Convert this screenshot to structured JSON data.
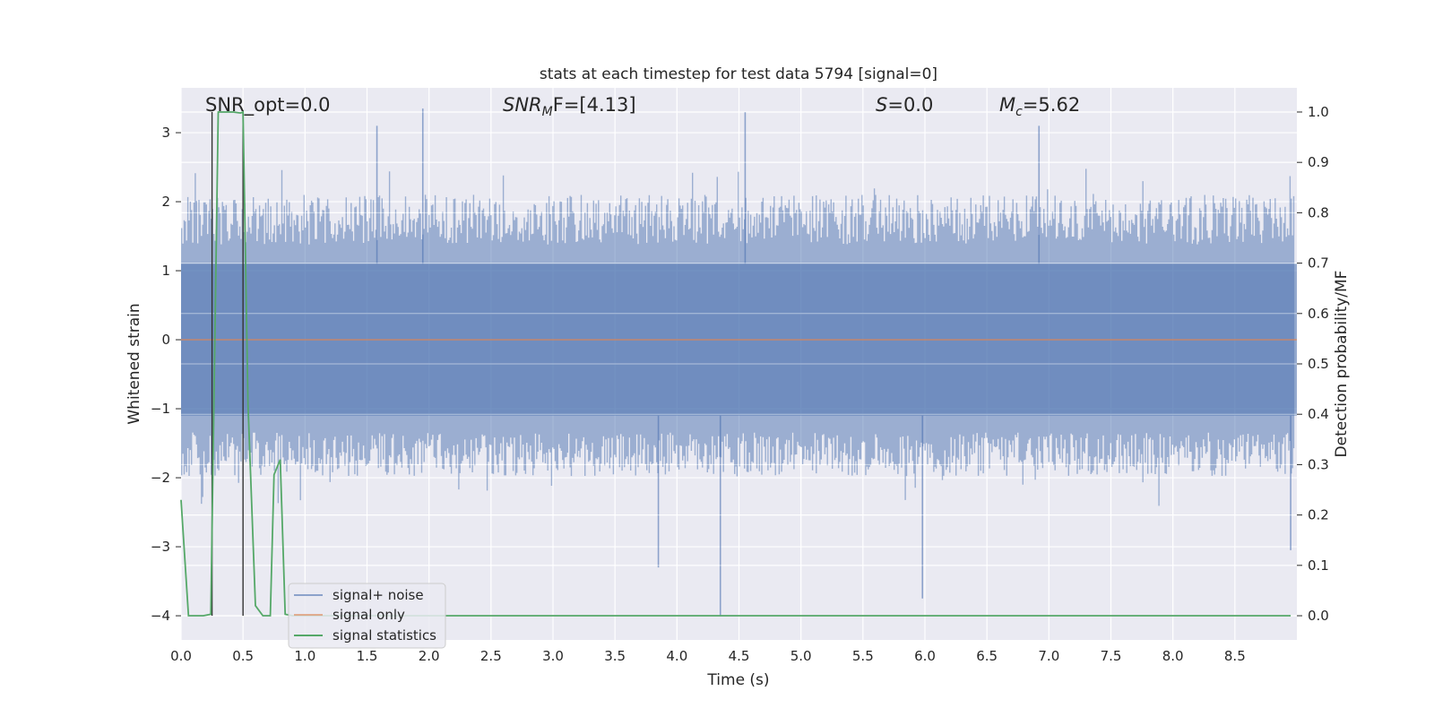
{
  "chart_data": {
    "type": "line",
    "title": "stats at each timestep for test data 5794 [signal=0]",
    "xlabel": "Time (s)",
    "ylabel": "Whitened strain",
    "ylabel_right": "Detection probability/MF",
    "xlim": [
      0.0,
      9.0
    ],
    "ylim": [
      -4.35,
      3.65
    ],
    "ylim_right": [
      -0.048,
      1.048
    ],
    "x_ticks": [
      "0.0",
      "0.5",
      "1.0",
      "1.5",
      "2.0",
      "2.5",
      "3.0",
      "3.5",
      "4.0",
      "4.5",
      "5.0",
      "5.5",
      "6.0",
      "6.5",
      "7.0",
      "7.5",
      "8.0",
      "8.5"
    ],
    "y_ticks": [
      "3",
      "2",
      "1",
      "0",
      "−1",
      "−2",
      "−3",
      "−4"
    ],
    "y_ticks_right": [
      "1.0",
      "0.9",
      "0.8",
      "0.7",
      "0.6",
      "0.5",
      "0.4",
      "0.3",
      "0.2",
      "0.1",
      "0.0"
    ],
    "annotations": {
      "snr_opt": "SNR_opt=0.0",
      "snr_mf_sym": "SNR",
      "snr_mf_sub": "M",
      "snr_mf_rest": "F=[4.13]",
      "s_sym": "S",
      "s_rest": "=0.0",
      "mc_sym": "M",
      "mc_sub": "c",
      "mc_rest": "=5.62"
    },
    "vertical_lines_x": [
      0.25,
      0.5
    ],
    "series": [
      {
        "name": "signal+ noise",
        "color": "#4c72b0",
        "style": "noise band",
        "band_typical_range": [
          -1.8,
          1.9
        ],
        "band_inner_range": [
          -1.1,
          1.1
        ],
        "peaks": [
          {
            "x": 1.95,
            "y": 3.35
          },
          {
            "x": 4.55,
            "y": 3.3
          },
          {
            "x": 1.58,
            "y": 3.1
          },
          {
            "x": 6.92,
            "y": 3.1
          }
        ],
        "troughs": [
          {
            "x": 4.35,
            "y": -4.0
          },
          {
            "x": 5.98,
            "y": -3.75
          },
          {
            "x": 3.85,
            "y": -3.3
          },
          {
            "x": 8.95,
            "y": -3.05
          }
        ]
      },
      {
        "name": "signal only",
        "color": "#dd8452",
        "x": [
          0.0,
          9.0
        ],
        "y": [
          0.0,
          0.0
        ]
      },
      {
        "name": "signal statistics",
        "color": "#55a868",
        "axis": "right",
        "x": [
          0.0,
          0.06,
          0.12,
          0.18,
          0.24,
          0.3,
          0.36,
          0.42,
          0.48,
          0.5,
          0.54,
          0.6,
          0.66,
          0.72,
          0.75,
          0.8,
          0.84,
          0.9,
          1.0,
          2.0,
          3.0,
          4.0,
          5.0,
          6.0,
          7.0,
          8.0,
          8.95
        ],
        "y": [
          0.23,
          0.0,
          0.0,
          0.0,
          0.003,
          1.0,
          1.0,
          1.0,
          0.998,
          1.0,
          0.42,
          0.02,
          0.0,
          0.0,
          0.28,
          0.31,
          0.003,
          0.0,
          0.0,
          0.0,
          0.0,
          0.0,
          0.0,
          0.0,
          0.0,
          0.0,
          0.0
        ]
      }
    ],
    "grid": true,
    "legend_position": "lower-left",
    "colors": {
      "axes_background": "#eaeaf2",
      "grid": "#ffffff",
      "text": "#262626",
      "vline": "#333333",
      "legend_background": "#eaeaf2",
      "legend_border": "#cccccc"
    }
  }
}
